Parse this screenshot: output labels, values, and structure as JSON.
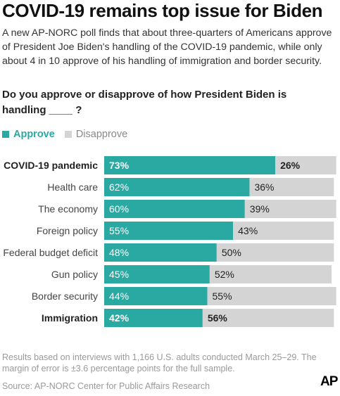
{
  "header": {
    "title": "COVID-19 remains top issue for Biden",
    "subtitle": "A new AP-NORC poll finds that about three-quarters of Americans approve of President Joe Biden's handling of the COVID-19 pandemic, while only about 4 in 10 approve of his handling of immigration and border security.",
    "question": "Do you approve or disapprove of how President Biden is handling ____ ?"
  },
  "legend": {
    "approve": "Approve",
    "disapprove": "Disapprove"
  },
  "colors": {
    "approve": "#2aa9a2",
    "disapprove": "#d4d4d4"
  },
  "chart_data": {
    "type": "bar",
    "orientation": "horizontal",
    "stacked": true,
    "categories": [
      "COVID-19 pandemic",
      "Health care",
      "The economy",
      "Foreign policy",
      "Federal budget deficit",
      "Gun policy",
      "Border security",
      "Immigration"
    ],
    "bold_categories": [
      "COVID-19 pandemic",
      "Immigration"
    ],
    "series": [
      {
        "name": "Approve",
        "values": [
          73,
          62,
          60,
          55,
          48,
          45,
          44,
          42
        ]
      },
      {
        "name": "Disapprove",
        "values": [
          26,
          36,
          39,
          43,
          50,
          52,
          55,
          56
        ]
      }
    ],
    "value_suffix": "%",
    "xlim": [
      0,
      100
    ],
    "grid": false,
    "legend_position": "top-left"
  },
  "footer": {
    "notes": "Results based on interviews with 1,166 U.S. adults conducted March 25–29. The margin of error is ±3.6 percentage points for the full sample.",
    "source": "Source: AP-NORC Center for Public Affairs Research",
    "logo": "AP"
  }
}
